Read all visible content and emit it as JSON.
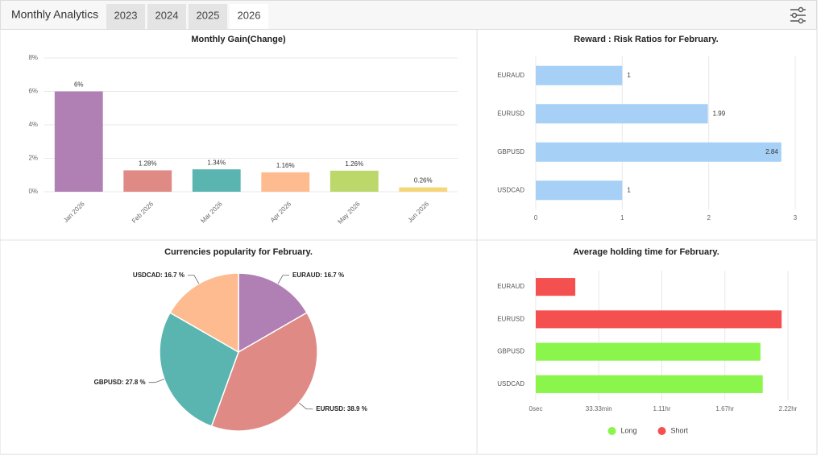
{
  "header": {
    "title": "Monthly Analytics",
    "tabs": [
      "2023",
      "2024",
      "2025",
      "2026"
    ],
    "active_tab": "2026"
  },
  "chart_data": [
    {
      "type": "bar",
      "title": "Monthly Gain(Change)",
      "categories": [
        "Jan 2026",
        "Feb 2026",
        "Mar 2026",
        "Apr 2026",
        "May 2026",
        "Jun 2026"
      ],
      "values": [
        6,
        1.28,
        1.34,
        1.16,
        1.26,
        0.26
      ],
      "value_labels": [
        "6%",
        "1.28%",
        "1.34%",
        "1.16%",
        "1.26%",
        "0.26%"
      ],
      "colors": [
        "#b07fb4",
        "#e08a86",
        "#5ab5b0",
        "#fdbb8f",
        "#bcd76a",
        "#f5d77a"
      ],
      "ylim": [
        0,
        8
      ],
      "yticks": [
        {
          "value": 0,
          "label": "0%"
        },
        {
          "value": 2,
          "label": "2%"
        },
        {
          "value": 4,
          "label": "4%"
        },
        {
          "value": 6,
          "label": "6%"
        },
        {
          "value": 8,
          "label": "8%"
        }
      ],
      "grid": true
    },
    {
      "type": "hbar",
      "title": "Reward : Risk Ratios for February.",
      "categories": [
        "EURAUD",
        "EURUSD",
        "GBPUSD",
        "USDCAD"
      ],
      "values": [
        1,
        1.99,
        2.84,
        1
      ],
      "color": "#a6d0f5",
      "xlim": [
        0,
        3
      ],
      "xticks": [
        0,
        1,
        2,
        3
      ],
      "grid": true
    },
    {
      "type": "pie",
      "title": "Currencies popularity for February.",
      "values": [
        16.7,
        38.9,
        27.8,
        16.7
      ],
      "value_labels": [
        "EURAUD: 16.7 %",
        "EURUSD: 38.9 %",
        "GBPUSD: 27.8 %",
        "USDCAD: 16.7 %"
      ],
      "colors": [
        "#b07fb4",
        "#e08a86",
        "#5ab5b0",
        "#fdbb8f"
      ]
    },
    {
      "type": "hbar",
      "title": "Average holding time for February.",
      "categories": [
        "EURAUD",
        "EURUSD",
        "GBPUSD",
        "USDCAD"
      ],
      "series": [
        {
          "name": "Long",
          "color": "#8af54a",
          "values": [
            null,
            null,
            118.8,
            120
          ]
        },
        {
          "name": "Short",
          "color": "#f55050",
          "values": [
            20.9,
            130,
            null,
            null
          ]
        }
      ],
      "xlim": [
        0,
        133.33
      ],
      "xticks": [
        {
          "value": 0,
          "label": "0sec"
        },
        {
          "value": 33.33,
          "label": "33.33min"
        },
        {
          "value": 66.67,
          "label": "1.11hr"
        },
        {
          "value": 100,
          "label": "1.67hr"
        },
        {
          "value": 133.33,
          "label": "2.22hr"
        }
      ],
      "grid": true,
      "legend": "bottom"
    }
  ]
}
